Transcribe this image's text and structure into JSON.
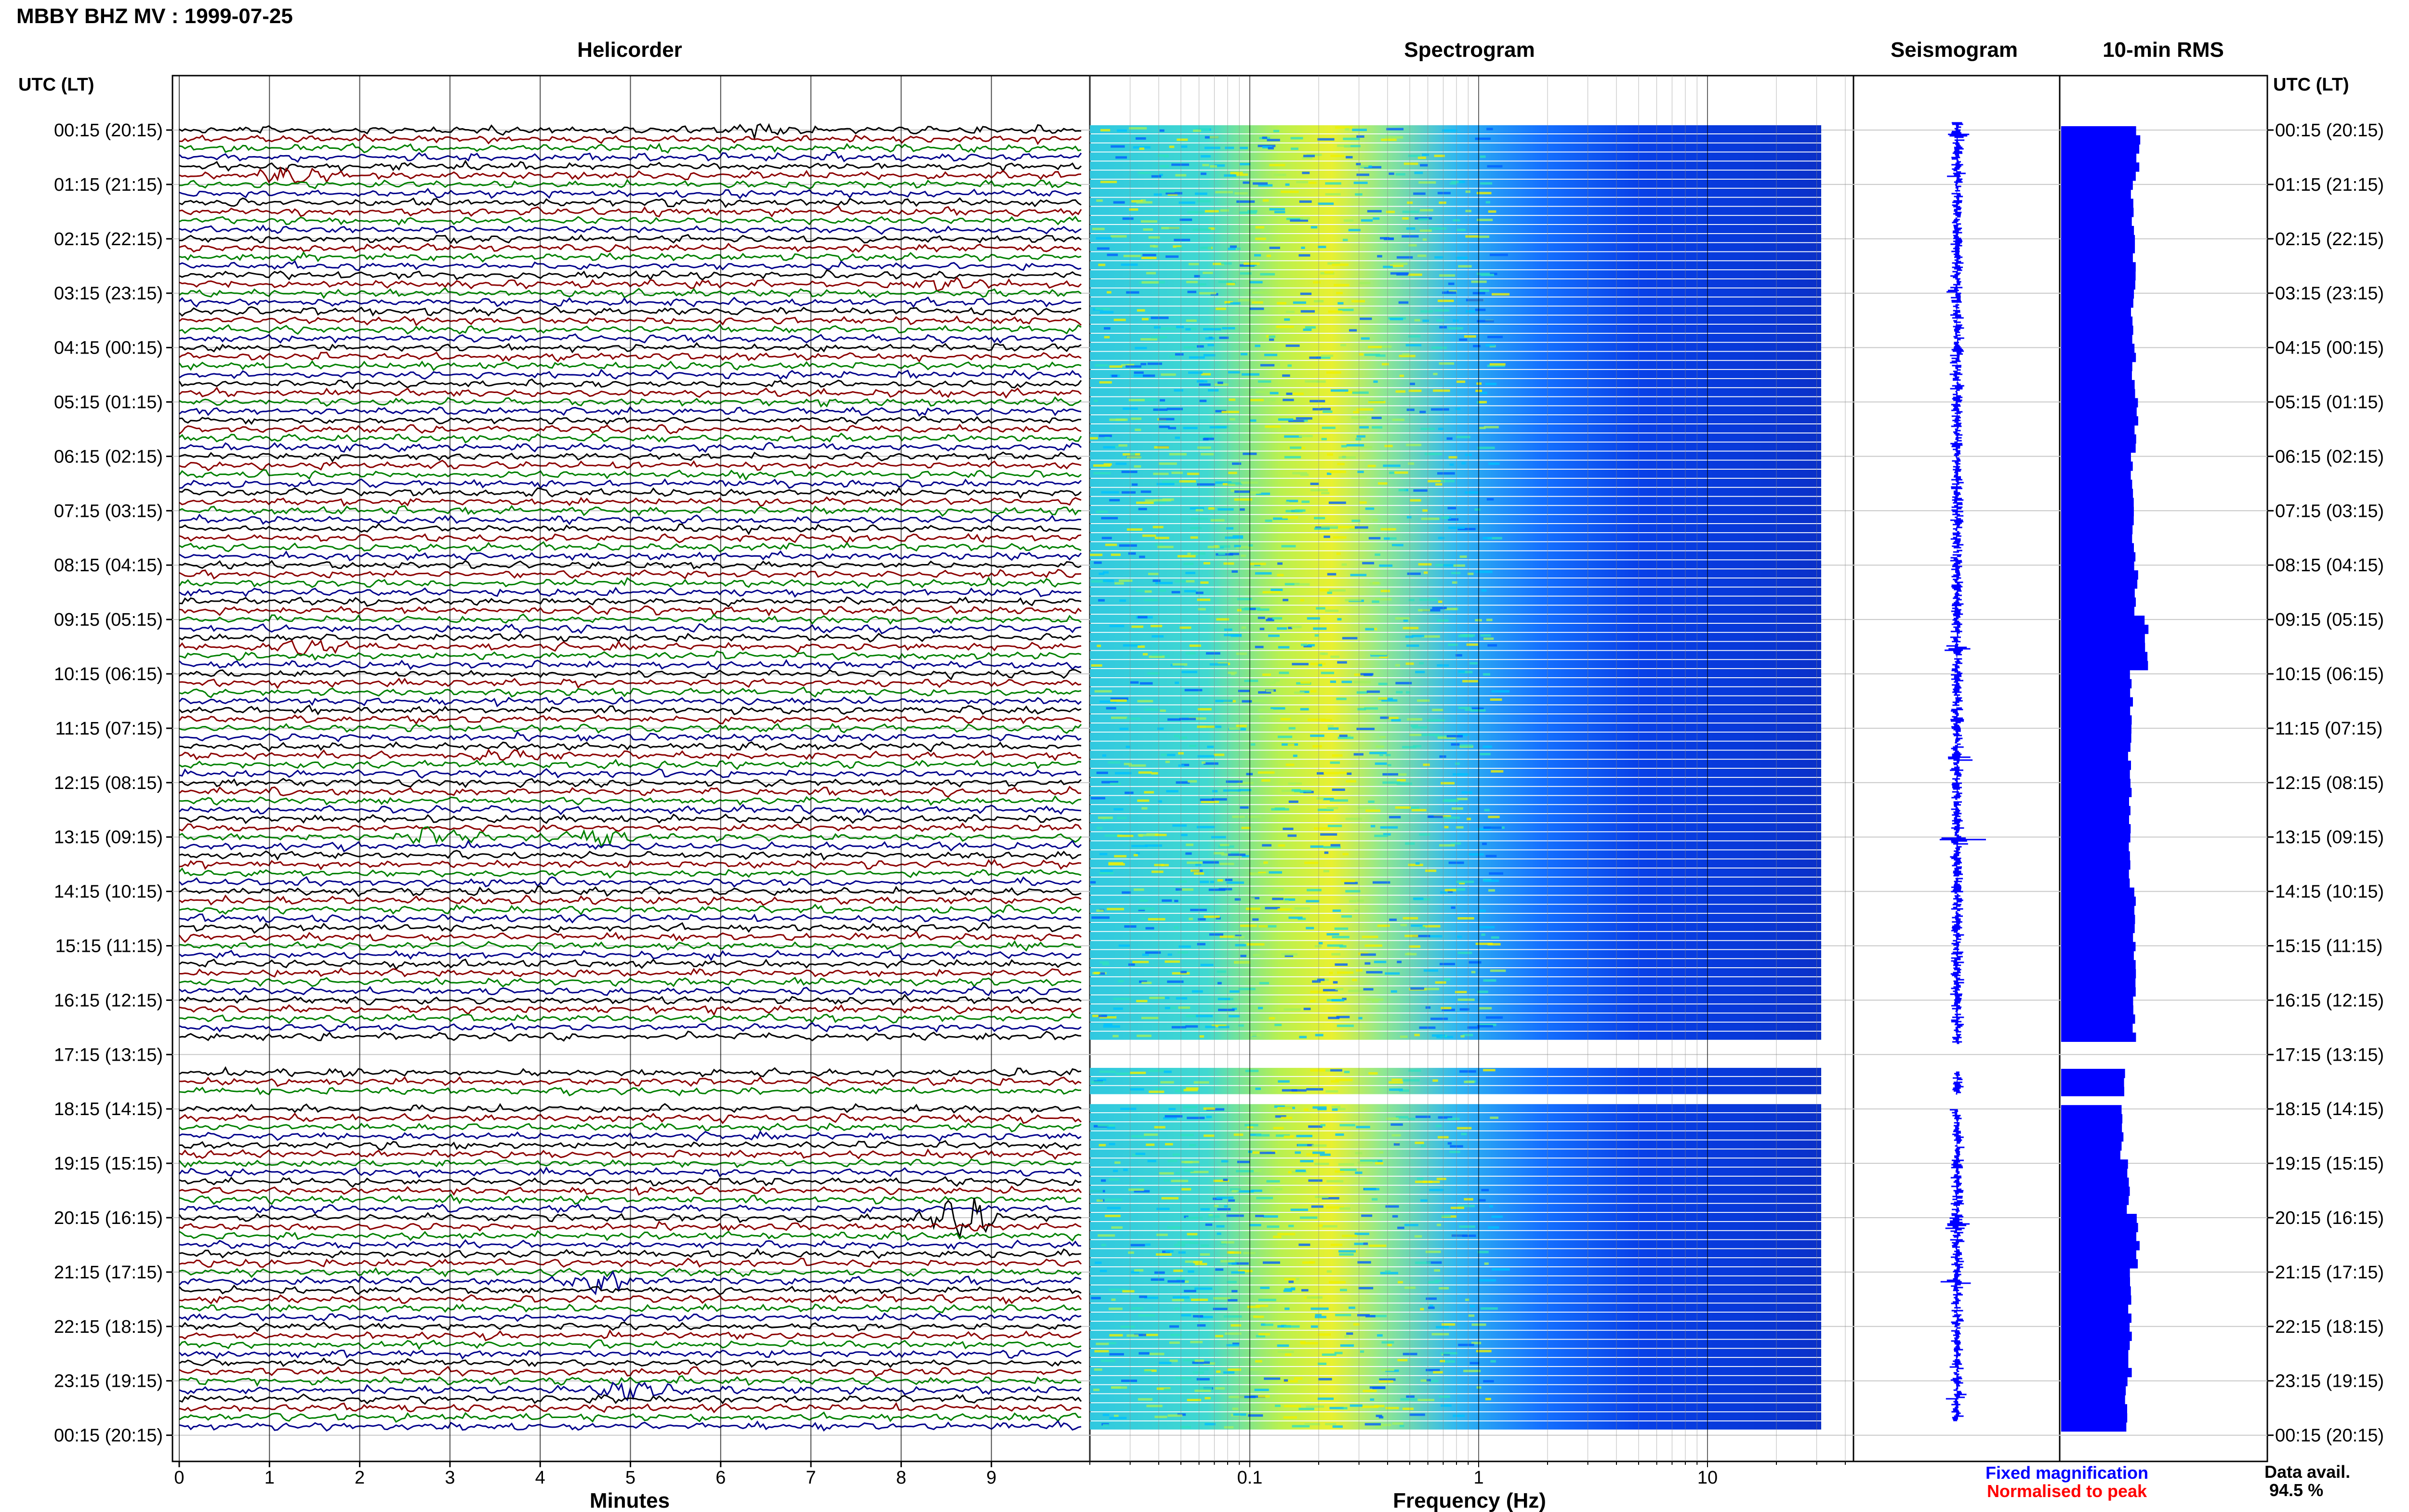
{
  "header": {
    "station_title": "MBBY BHZ MV : 1999-07-25",
    "utc_lt_label": "UTC (LT)"
  },
  "panels": {
    "helicorder": "Helicorder",
    "spectrogram": "Spectrogram",
    "seismogram": "Seismogram",
    "rms": "10-min RMS"
  },
  "footer": {
    "minutes_label": "Minutes",
    "frequency_label": "Frequency (Hz)",
    "fixed_magnification": "Fixed magnification",
    "normalised_to_peak": "Normalised to peak",
    "data_avail_label": "Data avail.",
    "data_avail_value": "94.5 %"
  },
  "colors": {
    "helicorder_traces": [
      "#000000",
      "#8b0000",
      "#008000",
      "#00008b"
    ],
    "seismogram": "#0000ff",
    "rms_bar": "#0000ff",
    "fixed_magnification": "#0000ff",
    "normalised_to_peak": "#ff0000",
    "spectrogram_colormap": [
      "#0000b0",
      "#0040ff",
      "#00a0ff",
      "#30e0c0",
      "#a0f060",
      "#f0f000"
    ]
  },
  "chart_data": [
    {
      "type": "line",
      "name": "helicorder",
      "title": "Helicorder",
      "xlabel": "Minutes",
      "x_ticks": [
        0,
        1,
        2,
        3,
        4,
        5,
        6,
        7,
        8,
        9
      ],
      "xlim": [
        0,
        10
      ],
      "lines_per_hour": 6,
      "row_labels_utc_lt": [
        "00:15 (20:15)",
        "01:15 (21:15)",
        "02:15 (22:15)",
        "03:15 (23:15)",
        "04:15 (00:15)",
        "05:15 (01:15)",
        "06:15 (02:15)",
        "07:15 (03:15)",
        "08:15 (04:15)",
        "09:15 (05:15)",
        "10:15 (06:15)",
        "11:15 (07:15)",
        "12:15 (08:15)",
        "13:15 (09:15)",
        "14:15 (10:15)",
        "15:15 (11:15)",
        "16:15 (12:15)",
        "17:15 (13:15)",
        "18:15 (14:15)",
        "19:15 (15:15)",
        "20:15 (16:15)",
        "21:15 (17:15)",
        "22:15 (18:15)",
        "23:15 (19:15)",
        "00:15 (20:15)"
      ],
      "data_gaps_hours": [
        [
          16.8,
          17.3
        ],
        [
          17.75,
          18.0
        ]
      ],
      "events": [
        {
          "hour": 0.0,
          "minute": 6.4,
          "amplitude": 3
        },
        {
          "hour": 0.8,
          "minute": 1.3,
          "amplitude": 3
        },
        {
          "hour": 2.8,
          "minute": 8.5,
          "amplitude": 3
        },
        {
          "hour": 9.5,
          "minute": 1.5,
          "amplitude": 3
        },
        {
          "hour": 11.5,
          "minute": 3.7,
          "amplitude": 3
        },
        {
          "hour": 13.0,
          "minute": 2.8,
          "amplitude": 4
        },
        {
          "hour": 13.0,
          "minute": 4.6,
          "amplitude": 5
        },
        {
          "hour": 20.0,
          "minute": 8.7,
          "amplitude": 7
        },
        {
          "hour": 21.1,
          "minute": 4.7,
          "amplitude": 4
        },
        {
          "hour": 23.2,
          "minute": 5.0,
          "amplitude": 3
        }
      ]
    },
    {
      "type": "heatmap",
      "name": "spectrogram",
      "title": "Spectrogram",
      "xlabel": "Frequency (Hz)",
      "x_scale": "log",
      "xlim": [
        0.02,
        40
      ],
      "x_ticks": [
        0.1,
        1,
        10
      ],
      "x_ticklabels": [
        "0.1",
        "1",
        "10"
      ],
      "dominant_band_hz": [
        0.15,
        0.5
      ]
    },
    {
      "type": "line",
      "name": "seismogram",
      "title": "Seismogram",
      "legend": "Fixed magnification"
    },
    {
      "type": "bar",
      "name": "rms",
      "title": "10-min RMS",
      "orientation": "horizontal",
      "legend": "Normalised to peak",
      "hourly_values": [
        0.38,
        0.35,
        0.36,
        0.35,
        0.36,
        0.37,
        0.35,
        0.36,
        0.37,
        0.42,
        0.35,
        0.34,
        0.34,
        0.34,
        0.36,
        0.37,
        0.36,
        0.31,
        0.3,
        0.33,
        0.38,
        0.34,
        0.34,
        0.32
      ]
    }
  ]
}
